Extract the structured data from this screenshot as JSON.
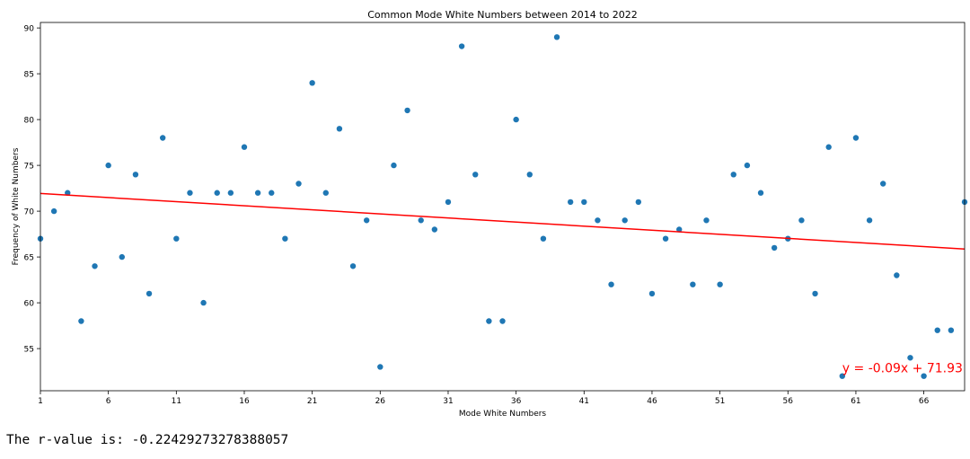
{
  "chart_data": {
    "type": "scatter",
    "title": "Common Mode White Numbers between 2014 to 2022",
    "xlabel": "Mode White Numbers",
    "ylabel": "Frequency of White Numbers",
    "xlim": [
      1,
      69
    ],
    "ylim": [
      50.4,
      90.6
    ],
    "x_ticks": [
      1,
      6,
      11,
      16,
      21,
      26,
      31,
      36,
      41,
      46,
      51,
      56,
      61,
      66
    ],
    "y_ticks": [
      55,
      60,
      65,
      70,
      75,
      80,
      85,
      90
    ],
    "grid": false,
    "series": [
      {
        "type": "scatter",
        "color": "#1f77b4",
        "x": [
          1,
          2,
          3,
          4,
          5,
          6,
          7,
          8,
          9,
          10,
          11,
          12,
          13,
          14,
          15,
          16,
          17,
          18,
          19,
          20,
          21,
          22,
          23,
          24,
          25,
          26,
          27,
          28,
          29,
          30,
          31,
          32,
          33,
          34,
          35,
          36,
          37,
          38,
          39,
          40,
          41,
          42,
          43,
          44,
          45,
          46,
          47,
          48,
          49,
          50,
          51,
          52,
          53,
          54,
          55,
          56,
          57,
          58,
          59,
          60,
          61,
          62,
          63,
          64,
          65,
          66,
          67,
          68,
          69
        ],
        "y": [
          67,
          70,
          72,
          58,
          64,
          75,
          65,
          74,
          61,
          78,
          67,
          72,
          60,
          72,
          72,
          77,
          72,
          72,
          67,
          73,
          84,
          72,
          79,
          64,
          69,
          53,
          75,
          81,
          69,
          68,
          71,
          88,
          74,
          58,
          58,
          80,
          74,
          67,
          89,
          71,
          71,
          69,
          62,
          69,
          71,
          61,
          67,
          68,
          62,
          69,
          62,
          74,
          75,
          72,
          66,
          67,
          69,
          61,
          77,
          52,
          78,
          69,
          73,
          63,
          54,
          52,
          57,
          57,
          71
        ]
      }
    ],
    "regression": {
      "slope": -0.09,
      "intercept": 71.93,
      "y_start": 71.93,
      "y_end": 65.87,
      "color": "#ff0000",
      "equation": "y = -0.09x + 71.93",
      "equation_x": 60,
      "equation_y": 52.4
    }
  },
  "output_text": "The r-value is: -0.22429273278388057"
}
